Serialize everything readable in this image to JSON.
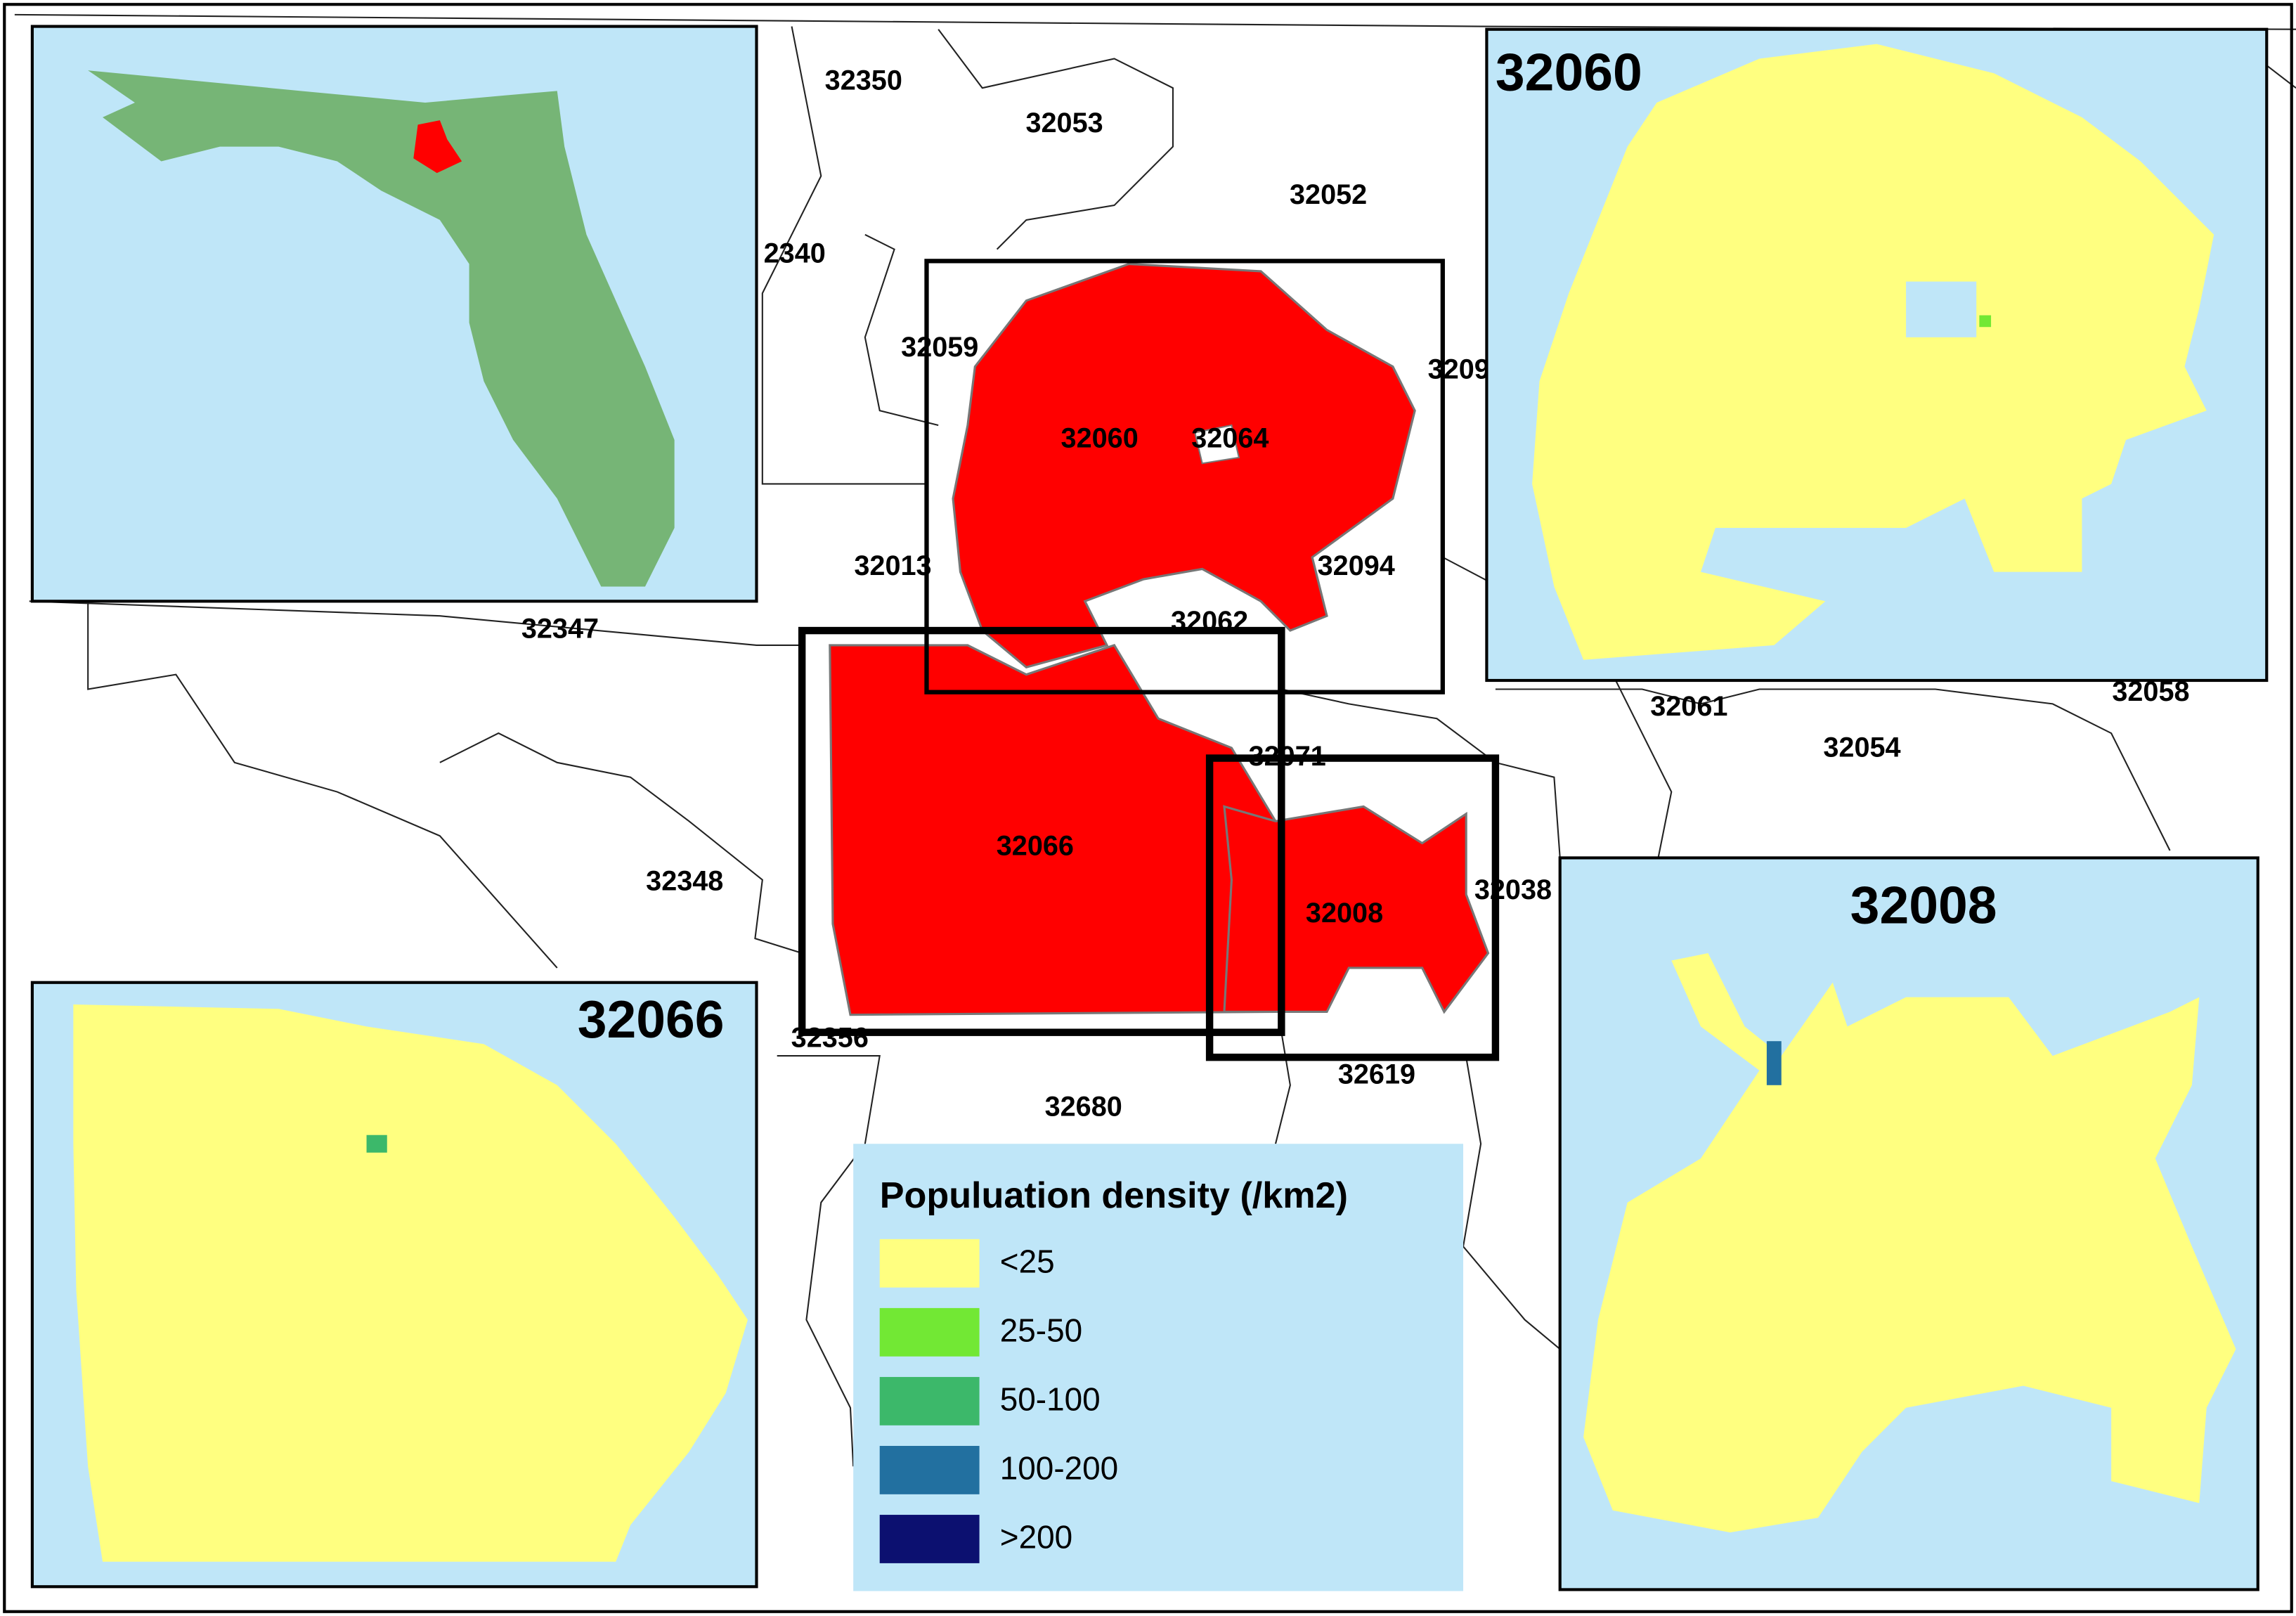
{
  "map": {
    "zip_labels": [
      "32350",
      "32053",
      "32052",
      "2340",
      "32059",
      "3209",
      "32060",
      "32064",
      "32013",
      "32094",
      "32062",
      "32347",
      "32071",
      "32066",
      "32348",
      "32008",
      "32038",
      "32356",
      "32619",
      "32680",
      "32061",
      "32054",
      "32058"
    ]
  },
  "insets": [
    {
      "title": "32060"
    },
    {
      "title": "32066"
    },
    {
      "title": "32008"
    }
  ],
  "legend": {
    "title": "Populuation density (/km2)",
    "items": [
      {
        "label": "<25",
        "color": "#ffff80"
      },
      {
        "label": "25-50",
        "color": "#72e834"
      },
      {
        "label": "50-100",
        "color": "#3cb86a"
      },
      {
        "label": "100-200",
        "color": "#2270a0"
      },
      {
        "label": ">200",
        "color": "#0c1070"
      }
    ]
  }
}
